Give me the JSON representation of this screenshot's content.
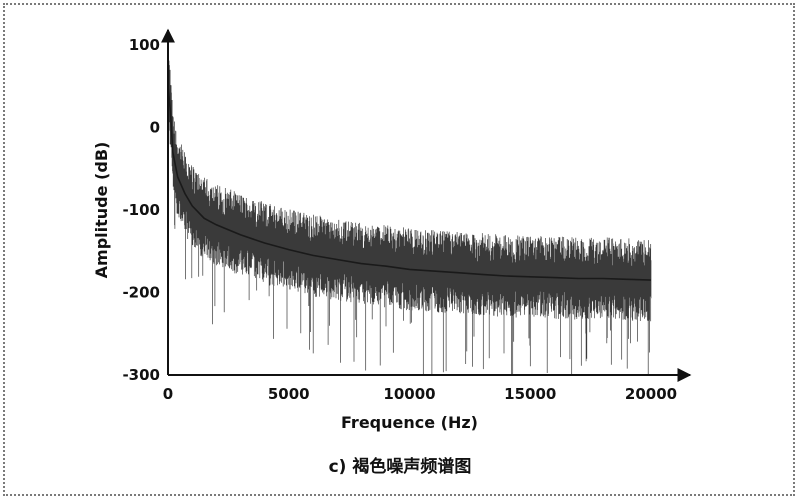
{
  "figure": {
    "caption": "c) 褐色噪声频谱图"
  },
  "chart_data": {
    "type": "line",
    "title": "",
    "xlabel": "Frequence (Hz)",
    "ylabel": "Amplitude (dB)",
    "xlim": [
      0,
      20000
    ],
    "ylim": [
      -300,
      100
    ],
    "xticks": [
      0,
      5000,
      10000,
      15000,
      20000
    ],
    "yticks": [
      100,
      0,
      -100,
      -200,
      -300
    ],
    "xtick_labels": [
      "0",
      "5000",
      "10000",
      "15000",
      "20000"
    ],
    "ytick_labels": [
      "100",
      "0",
      "-100",
      "-200",
      "-300"
    ],
    "grid": false,
    "legend": "none",
    "line_color": "#1a1a1a",
    "series": [
      {
        "x": [
          0,
          100,
          200,
          400,
          700,
          1000,
          1500,
          2000,
          3000,
          4000,
          5000,
          6000,
          7000,
          8000,
          9000,
          10000,
          11000,
          12000,
          13000,
          14000,
          15000,
          16000,
          17000,
          18000,
          19000,
          20000
        ],
        "y": [
          50,
          20,
          -30,
          -60,
          -80,
          -95,
          -110,
          -118,
          -130,
          -140,
          -148,
          -155,
          -160,
          -165,
          -168,
          -172,
          -174,
          -176,
          -178,
          -180,
          -181,
          -182,
          -183,
          -183,
          -184,
          -185
        ]
      }
    ]
  }
}
